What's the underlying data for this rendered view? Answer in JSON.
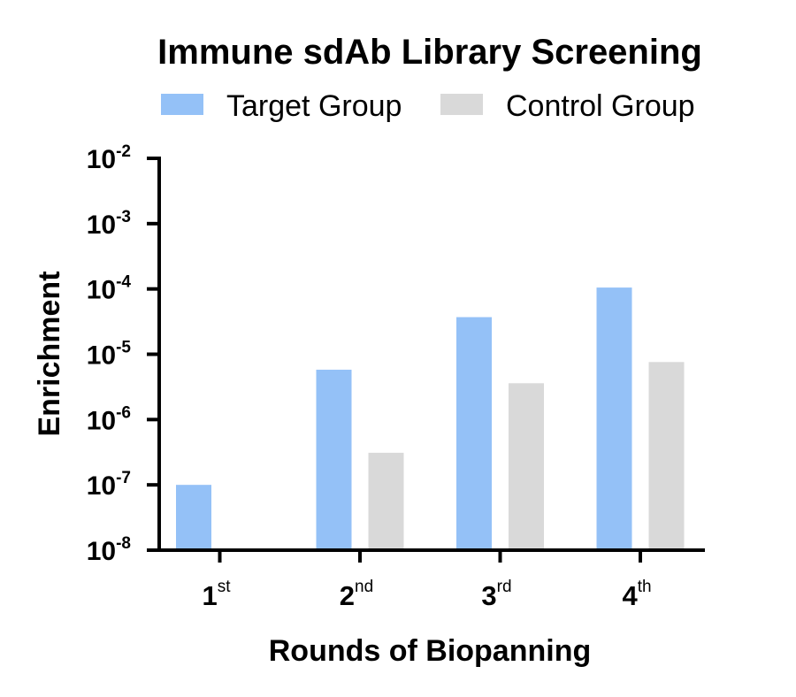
{
  "chart_data": {
    "type": "bar",
    "title": "Immune sdAb Library Screening",
    "xlabel": "Rounds of Biopanning",
    "ylabel": "Enrichment",
    "y_scale": "log",
    "ylim": [
      1e-08,
      0.01
    ],
    "categories": [
      {
        "base": "1",
        "sup": "st"
      },
      {
        "base": "2",
        "sup": "nd"
      },
      {
        "base": "3",
        "sup": "rd"
      },
      {
        "base": "4",
        "sup": "th"
      }
    ],
    "y_ticks": [
      {
        "value": 0.01,
        "base": "10",
        "exp": "-2"
      },
      {
        "value": 0.001,
        "base": "10",
        "exp": "-3"
      },
      {
        "value": 0.0001,
        "base": "10",
        "exp": "-4"
      },
      {
        "value": 1e-05,
        "base": "10",
        "exp": "-5"
      },
      {
        "value": 1e-06,
        "base": "10",
        "exp": "-6"
      },
      {
        "value": 1e-07,
        "base": "10",
        "exp": "-7"
      },
      {
        "value": 1e-08,
        "base": "10",
        "exp": "-8"
      }
    ],
    "series": [
      {
        "name": "Target Group",
        "color": "#94c1f7",
        "values": [
          1e-07,
          5.8e-06,
          3.7e-05,
          0.000105
        ]
      },
      {
        "name": "Control Group",
        "color": "#d9d9d9",
        "values": [
          null,
          3.1e-07,
          3.6e-06,
          7.6e-06
        ]
      }
    ],
    "legend": "top-center",
    "grid": false
  }
}
